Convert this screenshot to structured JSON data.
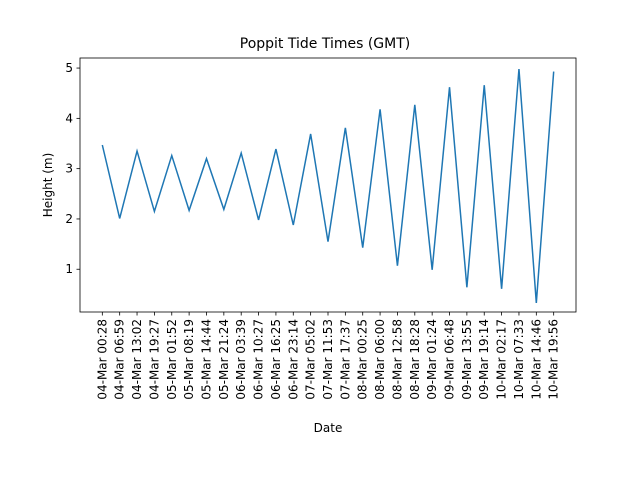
{
  "chart_data": {
    "type": "line",
    "title": "Poppit Tide Times (GMT)",
    "xlabel": "Date",
    "ylabel": "Height (m)",
    "ylim": [
      0.15,
      5.2
    ],
    "yticks": [
      1,
      2,
      3,
      4,
      5
    ],
    "grid": false,
    "line_color": "#1f77b4",
    "categories": [
      "04-Mar 00:28",
      "04-Mar 06:59",
      "04-Mar 13:02",
      "04-Mar 19:27",
      "05-Mar 01:52",
      "05-Mar 08:19",
      "05-Mar 14:44",
      "05-Mar 21:24",
      "06-Mar 03:39",
      "06-Mar 10:27",
      "06-Mar 16:25",
      "06-Mar 23:14",
      "07-Mar 05:02",
      "07-Mar 11:53",
      "07-Mar 17:37",
      "08-Mar 00:25",
      "08-Mar 06:00",
      "08-Mar 12:58",
      "08-Mar 18:28",
      "09-Mar 01:24",
      "09-Mar 06:48",
      "09-Mar 13:55",
      "09-Mar 19:14",
      "10-Mar 02:17",
      "10-Mar 07:33",
      "10-Mar 14:46",
      "10-Mar 19:56"
    ],
    "series": [
      {
        "values": [
          3.47,
          2.01,
          3.35,
          2.15,
          3.26,
          2.17,
          3.2,
          2.19,
          3.31,
          1.98,
          3.39,
          1.88,
          3.69,
          1.55,
          3.81,
          1.43,
          4.18,
          1.07,
          4.27,
          0.99,
          4.62,
          0.64,
          4.66,
          0.61,
          4.98,
          0.33,
          4.93
        ]
      }
    ]
  }
}
